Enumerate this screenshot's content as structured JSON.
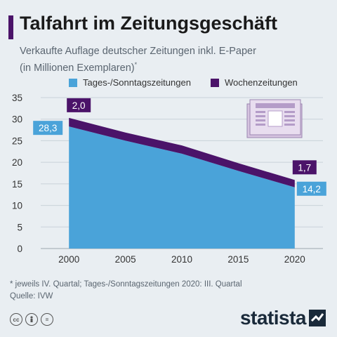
{
  "header": {
    "title": "Talfahrt im Zeitungsgeschäft",
    "subtitle_line1": "Verkaufte Auflage deutscher Zeitungen inkl. E-Paper",
    "subtitle_line2": "(in Millionen Exemplaren)",
    "subtitle_mark": "*",
    "accent_color": "#4b1369"
  },
  "legend": {
    "items": [
      {
        "label": "Tages-/Sonntagszeitungen",
        "color": "#4aa3d9"
      },
      {
        "label": "Wochenzeitungen",
        "color": "#4b1369"
      }
    ]
  },
  "chart_data": {
    "type": "area",
    "x": [
      2000,
      2005,
      2010,
      2015,
      2020
    ],
    "series": [
      {
        "name": "Tages-/Sonntagszeitungen",
        "values": [
          28.3,
          25.0,
          22.0,
          18.0,
          14.2
        ],
        "color": "#4aa3d9"
      },
      {
        "name": "Wochenzeitungen",
        "values": [
          2.0,
          1.9,
          1.9,
          1.8,
          1.7
        ],
        "color": "#4b1369"
      }
    ],
    "stacked": true,
    "xticks": [
      "2000",
      "2005",
      "2010",
      "2015",
      "2020"
    ],
    "yticks": [
      "0",
      "5",
      "10",
      "15",
      "20",
      "25",
      "30",
      "35"
    ],
    "ylim": [
      0,
      35
    ],
    "grid": true,
    "data_labels": [
      {
        "text": "28,3",
        "series": "Tages-/Sonntagszeitungen",
        "x": 2000,
        "value": 28.3
      },
      {
        "text": "2,0",
        "series": "Wochenzeitungen",
        "x": 2000,
        "value": 2.0
      },
      {
        "text": "14,2",
        "series": "Tages-/Sonntagszeitungen",
        "x": 2020,
        "value": 14.2
      },
      {
        "text": "1,7",
        "series": "Wochenzeitungen",
        "x": 2020,
        "value": 1.7
      }
    ]
  },
  "footer": {
    "footnote": "* jeweils IV. Quartal; Tages-/Sonntagszeitungen 2020: III. Quartal",
    "source": "Quelle: IVW",
    "brand": "statista",
    "license_icons": [
      "cc-icon",
      "by-icon",
      "nd-icon"
    ]
  }
}
